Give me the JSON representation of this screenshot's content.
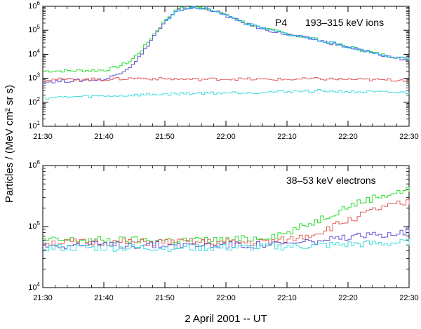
{
  "figure": {
    "ylabel": "Particles / (MeV cm² sr s)",
    "xlabel": "2 April 2001  --  UT"
  },
  "chart_data": [
    {
      "type": "line",
      "title": "",
      "label": "P4",
      "sublabel": "193–315 keV ions",
      "x_ticks": [
        "21:30",
        "21:40",
        "21:50",
        "22:00",
        "22:10",
        "22:20",
        "22:30"
      ],
      "x_range_minutes": [
        0,
        60
      ],
      "y_scale": "log",
      "ylim": [
        10,
        1000000
      ],
      "y_ticks": [
        {
          "value": 10,
          "base": "10",
          "exp": "1"
        },
        {
          "value": 100,
          "base": "10",
          "exp": "2"
        },
        {
          "value": 1000,
          "base": "10",
          "exp": "3"
        },
        {
          "value": 10000,
          "base": "10",
          "exp": "4"
        },
        {
          "value": 100000,
          "base": "10",
          "exp": "5"
        },
        {
          "value": 1000000,
          "base": "10",
          "exp": "6"
        }
      ],
      "grid": false,
      "series": [
        {
          "color": "#33dd33",
          "points": [
            [
              0,
              2000
            ],
            [
              6,
              2100
            ],
            [
              10,
              2200
            ],
            [
              12,
              3000
            ],
            [
              14,
              5000
            ],
            [
              16,
              15000
            ],
            [
              18,
              70000
            ],
            [
              20,
              300000
            ],
            [
              22,
              800000
            ],
            [
              24,
              900000
            ],
            [
              26,
              850000
            ],
            [
              28,
              700000
            ],
            [
              30,
              400000
            ],
            [
              33,
              200000
            ],
            [
              36,
              120000
            ],
            [
              40,
              70000
            ],
            [
              45,
              40000
            ],
            [
              50,
              20000
            ],
            [
              55,
              10000
            ],
            [
              60,
              6000
            ]
          ]
        },
        {
          "color": "#6655cc",
          "points": [
            [
              0,
              700
            ],
            [
              5,
              800
            ],
            [
              10,
              900
            ],
            [
              12,
              1500
            ],
            [
              14,
              3000
            ],
            [
              16,
              10000
            ],
            [
              18,
              60000
            ],
            [
              20,
              250000
            ],
            [
              22,
              700000
            ],
            [
              24,
              850000
            ],
            [
              26,
              800000
            ],
            [
              28,
              650000
            ],
            [
              30,
              380000
            ],
            [
              33,
              190000
            ],
            [
              36,
              110000
            ],
            [
              40,
              65000
            ],
            [
              45,
              38000
            ],
            [
              50,
              19000
            ],
            [
              55,
              9500
            ],
            [
              60,
              5500
            ]
          ]
        },
        {
          "color": "#22aaff",
          "points": [
            [
              20,
              250000
            ],
            [
              22,
              720000
            ],
            [
              24,
              880000
            ],
            [
              26,
              820000
            ],
            [
              28,
              670000
            ],
            [
              30,
              390000
            ],
            [
              33,
              195000
            ],
            [
              36,
              115000
            ],
            [
              40,
              68000
            ],
            [
              45,
              40000
            ],
            [
              50,
              20000
            ],
            [
              55,
              10000
            ],
            [
              60,
              5800
            ]
          ]
        },
        {
          "color": "#e06060",
          "points": [
            [
              0,
              900
            ],
            [
              10,
              900
            ],
            [
              15,
              1000
            ],
            [
              20,
              950
            ],
            [
              25,
              900
            ],
            [
              30,
              950
            ],
            [
              35,
              900
            ],
            [
              40,
              900
            ],
            [
              45,
              950
            ],
            [
              50,
              900
            ],
            [
              55,
              850
            ],
            [
              60,
              850
            ]
          ]
        },
        {
          "color": "#44dddd",
          "points": [
            [
              0,
              150
            ],
            [
              5,
              170
            ],
            [
              10,
              180
            ],
            [
              15,
              200
            ],
            [
              20,
              220
            ],
            [
              25,
              240
            ],
            [
              30,
              250
            ],
            [
              35,
              260
            ],
            [
              40,
              280
            ],
            [
              45,
              300
            ],
            [
              50,
              280
            ],
            [
              55,
              260
            ],
            [
              60,
              250
            ]
          ]
        }
      ]
    },
    {
      "type": "line",
      "title": "",
      "sublabel": "38–53 keV electrons",
      "x_ticks": [
        "21:30",
        "21:40",
        "21:50",
        "22:00",
        "22:10",
        "22:20",
        "22:30"
      ],
      "x_range_minutes": [
        0,
        60
      ],
      "y_scale": "log",
      "ylim": [
        10000,
        1000000
      ],
      "y_ticks": [
        {
          "value": 10000,
          "base": "10",
          "exp": "4"
        },
        {
          "value": 100000,
          "base": "10",
          "exp": "5"
        },
        {
          "value": 1000000,
          "base": "10",
          "exp": "6"
        }
      ],
      "grid": false,
      "series": [
        {
          "color": "#33dd33",
          "points": [
            [
              0,
              60000
            ],
            [
              10,
              60000
            ],
            [
              20,
              60000
            ],
            [
              30,
              60000
            ],
            [
              35,
              65000
            ],
            [
              40,
              80000
            ],
            [
              45,
              130000
            ],
            [
              50,
              220000
            ],
            [
              55,
              320000
            ],
            [
              60,
              400000
            ]
          ]
        },
        {
          "color": "#e06060",
          "points": [
            [
              0,
              55000
            ],
            [
              10,
              55000
            ],
            [
              20,
              55000
            ],
            [
              30,
              55000
            ],
            [
              35,
              55000
            ],
            [
              40,
              60000
            ],
            [
              45,
              80000
            ],
            [
              50,
              130000
            ],
            [
              55,
              200000
            ],
            [
              60,
              250000
            ]
          ]
        },
        {
          "color": "#6655cc",
          "points": [
            [
              0,
              50000
            ],
            [
              10,
              50000
            ],
            [
              20,
              50000
            ],
            [
              30,
              50000
            ],
            [
              35,
              50000
            ],
            [
              40,
              52000
            ],
            [
              45,
              58000
            ],
            [
              50,
              65000
            ],
            [
              55,
              75000
            ],
            [
              60,
              85000
            ]
          ]
        },
        {
          "color": "#44dddd",
          "points": [
            [
              0,
              45000
            ],
            [
              10,
              45000
            ],
            [
              20,
              45000
            ],
            [
              30,
              45000
            ],
            [
              35,
              46000
            ],
            [
              40,
              47000
            ],
            [
              45,
              49000
            ],
            [
              50,
              51000
            ],
            [
              55,
              53000
            ],
            [
              60,
              55000
            ]
          ]
        }
      ]
    }
  ]
}
